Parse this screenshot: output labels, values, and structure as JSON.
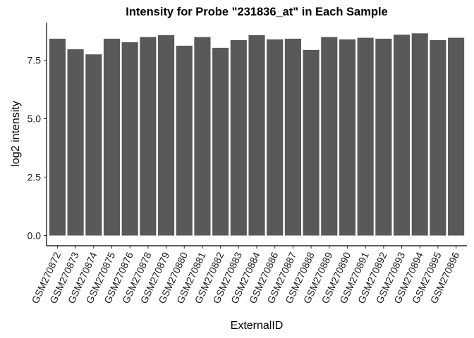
{
  "chart_data": {
    "type": "bar",
    "title": "Intensity for Probe \"231836_at\" in Each Sample",
    "xlabel": "ExternalID",
    "ylabel": "log2 intensity",
    "ylim": [
      0,
      9
    ],
    "yticks": [
      0.0,
      2.5,
      5.0,
      7.5
    ],
    "ytick_labels": [
      "0.0",
      "2.5",
      "5.0",
      "7.5"
    ],
    "grid": false,
    "bar_color": "#595959",
    "categories": [
      "GSM270872",
      "GSM270873",
      "GSM270874",
      "GSM270875",
      "GSM270876",
      "GSM270878",
      "GSM270879",
      "GSM270880",
      "GSM270881",
      "GSM270882",
      "GSM270883",
      "GSM270884",
      "GSM270886",
      "GSM270887",
      "GSM270888",
      "GSM270889",
      "GSM270890",
      "GSM270891",
      "GSM270892",
      "GSM270893",
      "GSM270894",
      "GSM270895",
      "GSM270896"
    ],
    "values": [
      8.42,
      7.97,
      7.75,
      8.42,
      8.27,
      8.49,
      8.57,
      8.12,
      8.49,
      8.03,
      8.36,
      8.57,
      8.39,
      8.42,
      7.94,
      8.49,
      8.39,
      8.46,
      8.42,
      8.59,
      8.65,
      8.36,
      8.46
    ]
  }
}
